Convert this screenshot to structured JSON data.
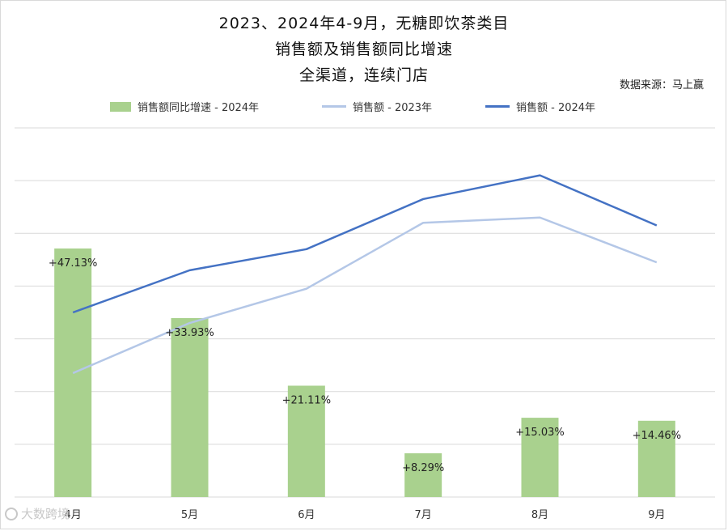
{
  "title": {
    "line1": "2023、2024年4-9月，无糖即饮茶类目",
    "line2": "销售额及销售额同比增速",
    "line3": "全渠道，连续门店"
  },
  "source": "数据来源：马上赢",
  "watermark": "大数跨境",
  "legend": {
    "bar": "销售额同比增速 - 2024年",
    "line2023": "销售额 - 2023年",
    "line2024": "销售额 - 2024年"
  },
  "colors": {
    "bar": "#a9d18e",
    "line2023": "#b4c7e7",
    "line2024": "#4472c4",
    "grid": "#d9d9d9"
  },
  "chart_data": {
    "type": "bar+line",
    "categories": [
      "4月",
      "5月",
      "6月",
      "7月",
      "8月",
      "9月"
    ],
    "bar_series": {
      "name": "销售额同比增速 - 2024年",
      "values": [
        47.13,
        33.93,
        21.11,
        8.29,
        15.03,
        14.46
      ],
      "labels": [
        "+47.13%",
        "+33.93%",
        "+21.11%",
        "+8.29%",
        "+15.03%",
        "+14.46%"
      ]
    },
    "line_series": [
      {
        "name": "销售额 - 2023年",
        "values": [
          23.5,
          33.0,
          39.5,
          52.0,
          53.0,
          44.5
        ]
      },
      {
        "name": "销售额 - 2024年",
        "values": [
          35.0,
          43.0,
          47.0,
          56.5,
          61.0,
          51.5
        ]
      }
    ],
    "ylim": [
      0,
      70
    ],
    "grid": true,
    "legend_position": "top"
  }
}
